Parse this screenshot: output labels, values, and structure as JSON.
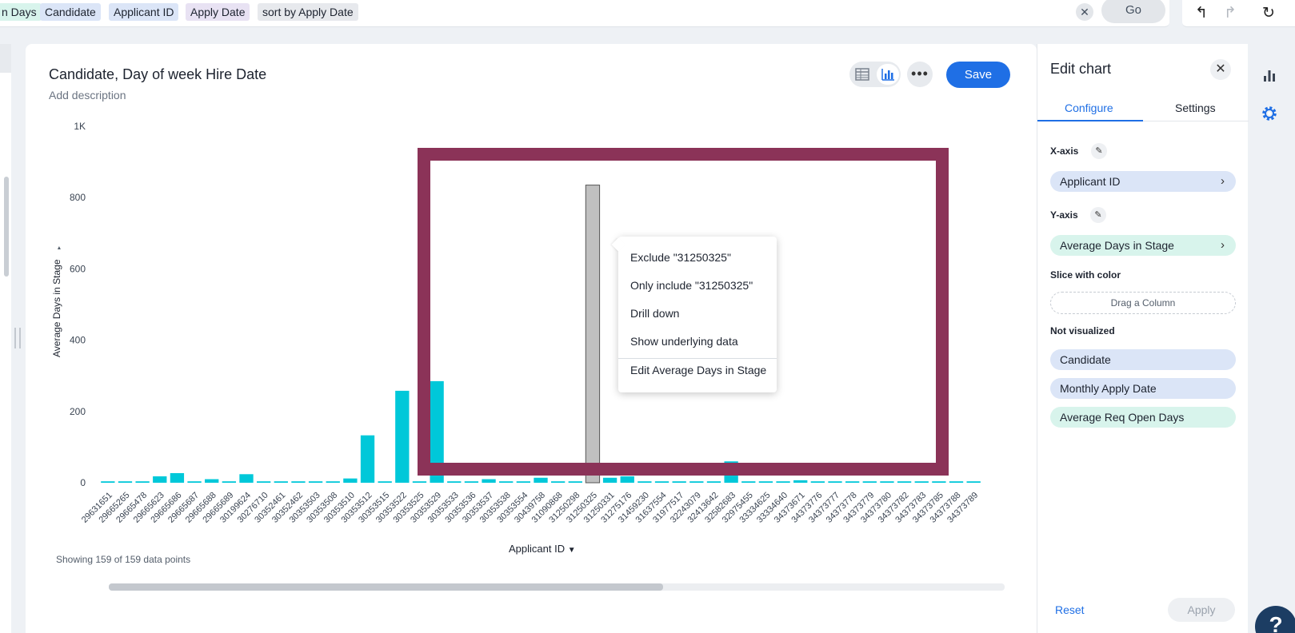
{
  "search": {
    "tokens": [
      "n Days",
      "Candidate",
      "Applicant ID",
      "Apply Date",
      "sort by Apply Date"
    ],
    "clear_icon": "close-icon",
    "go_label": "Go"
  },
  "toolbar": {
    "undo_icon": "undo-icon",
    "redo_icon": "redo-icon",
    "reset_icon": "reset-icon"
  },
  "chart": {
    "title": "Candidate, Day of week Hire Date",
    "description": "Add description",
    "save_label": "Save",
    "points_info": "Showing 159 of 159 data points",
    "x_axis_title": "Applicant ID",
    "y_axis_title": "Average Days in Stage"
  },
  "context_menu": {
    "items": [
      "Exclude \"31250325\"",
      "Only include \"31250325\"",
      "Drill down",
      "Show underlying data",
      "Edit Average Days in Stage"
    ]
  },
  "edit_panel": {
    "title": "Edit chart",
    "tabs": [
      "Configure",
      "Settings"
    ],
    "x_axis_label": "X-axis",
    "x_axis_value": "Applicant ID",
    "y_axis_label": "Y-axis",
    "y_axis_value": "Average Days in Stage",
    "slice_label": "Slice with color",
    "drag_placeholder": "Drag a Column",
    "not_visualized_label": "Not visualized",
    "not_visualized": [
      "Candidate",
      "Monthly Apply Date",
      "Average Req Open Days"
    ],
    "reset_label": "Reset",
    "apply_label": "Apply"
  },
  "help_label": "?",
  "colors": {
    "bar": "#00c8d9",
    "highlight_bar": "#c0c0c0",
    "accent": "#1f6fe5",
    "overlay": "#8b3358"
  },
  "chart_data": {
    "type": "bar",
    "title": "Candidate, Day of week Hire Date",
    "xlabel": "Applicant ID",
    "ylabel": "Average Days in Stage",
    "ylim": [
      0,
      1000
    ],
    "yticks": [
      0,
      200,
      400,
      600,
      800,
      1000
    ],
    "ytick_labels": [
      "0",
      "200",
      "400",
      "600",
      "800",
      "1K"
    ],
    "selected_category": "31250325",
    "categories": [
      "29631651",
      "29665265",
      "29665478",
      "29665623",
      "29665686",
      "29665687",
      "29665688",
      "29665689",
      "30199624",
      "30276710",
      "30352461",
      "30352462",
      "30353503",
      "30353508",
      "30353510",
      "30353512",
      "30353515",
      "30353522",
      "30353525",
      "30353529",
      "30353533",
      "30353536",
      "30353537",
      "30353538",
      "30353554",
      "30439758",
      "31090868",
      "31250298",
      "31250325",
      "31250331",
      "31275176",
      "31459230",
      "31637554",
      "31977517",
      "32243079",
      "32413642",
      "32582683",
      "32975455",
      "33334625",
      "33334640",
      "34373671",
      "34373776",
      "34373777",
      "34373778",
      "34373779",
      "34373780",
      "34373782",
      "34373783",
      "34373785",
      "34373788",
      "34373789"
    ],
    "values": [
      4,
      4,
      4,
      18,
      27,
      4,
      10,
      4,
      24,
      4,
      4,
      4,
      4,
      4,
      12,
      133,
      4,
      258,
      4,
      285,
      4,
      4,
      10,
      4,
      4,
      14,
      4,
      4,
      835,
      14,
      18,
      4,
      4,
      4,
      4,
      4,
      60,
      4,
      4,
      4,
      7,
      4,
      4,
      4,
      4,
      4,
      4,
      4,
      4,
      4,
      4
    ]
  }
}
